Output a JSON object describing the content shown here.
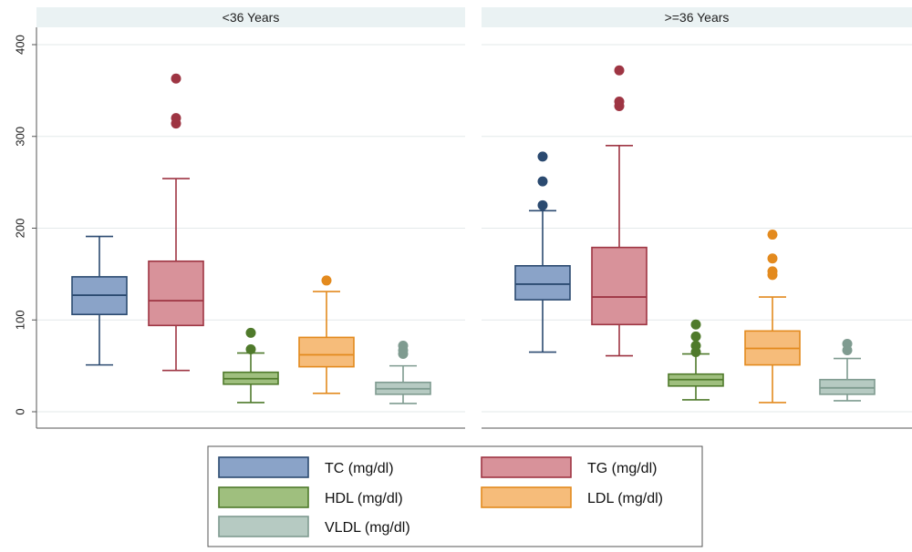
{
  "chart_data": {
    "type": "box",
    "ylim": [
      0,
      400
    ],
    "yticks": [
      0,
      100,
      200,
      300,
      400
    ],
    "grid": true,
    "legend_position": "bottom",
    "series": [
      {
        "name": "TC (mg/dl)",
        "fill": "#8aa3c8",
        "stroke": "#2b4a70"
      },
      {
        "name": "TG (mg/dl)",
        "fill": "#d8929a",
        "stroke": "#9e3543"
      },
      {
        "name": "HDL (mg/dl)",
        "fill": "#9fbf7e",
        "stroke": "#4f7a2b"
      },
      {
        "name": "LDL (mg/dl)",
        "fill": "#f6bc7a",
        "stroke": "#e38a1e"
      },
      {
        "name": "VLDL (mg/dl)",
        "fill": "#b6cac2",
        "stroke": "#7f9b90"
      }
    ],
    "panels": [
      {
        "title": "<36 Years",
        "boxes": [
          {
            "series": "TC (mg/dl)",
            "min": 51,
            "q1": 106,
            "median": 127,
            "q3": 147,
            "max": 191,
            "outliers": []
          },
          {
            "series": "TG (mg/dl)",
            "min": 45,
            "q1": 94,
            "median": 121,
            "q3": 164,
            "max": 254,
            "outliers": [
              314,
              320,
              363
            ]
          },
          {
            "series": "HDL (mg/dl)",
            "min": 10,
            "q1": 30,
            "median": 36,
            "q3": 43,
            "max": 64,
            "outliers": [
              68,
              86
            ]
          },
          {
            "series": "LDL (mg/dl)",
            "min": 20,
            "q1": 49,
            "median": 62,
            "q3": 81,
            "max": 131,
            "outliers": [
              143
            ]
          },
          {
            "series": "VLDL (mg/dl)",
            "min": 9,
            "q1": 19,
            "median": 25,
            "q3": 32,
            "max": 50,
            "outliers": [
              63,
              67,
              72
            ]
          }
        ]
      },
      {
        "title": ">=36 Years",
        "boxes": [
          {
            "series": "TC (mg/dl)",
            "min": 65,
            "q1": 122,
            "median": 139,
            "q3": 159,
            "max": 219,
            "outliers": [
              225,
              251,
              278
            ]
          },
          {
            "series": "TG (mg/dl)",
            "min": 61,
            "q1": 95,
            "median": 125,
            "q3": 179,
            "max": 290,
            "outliers": [
              333,
              338,
              372
            ]
          },
          {
            "series": "HDL (mg/dl)",
            "min": 13,
            "q1": 28,
            "median": 35,
            "q3": 41,
            "max": 63,
            "outliers": [
              65,
              72,
              82,
              95
            ]
          },
          {
            "series": "LDL (mg/dl)",
            "min": 10,
            "q1": 51,
            "median": 69,
            "q3": 88,
            "max": 125,
            "outliers": [
              149,
              153,
              167,
              193
            ]
          },
          {
            "series": "VLDL (mg/dl)",
            "min": 12,
            "q1": 19,
            "median": 26,
            "q3": 35,
            "max": 58,
            "outliers": [
              67,
              74
            ]
          }
        ]
      }
    ]
  }
}
